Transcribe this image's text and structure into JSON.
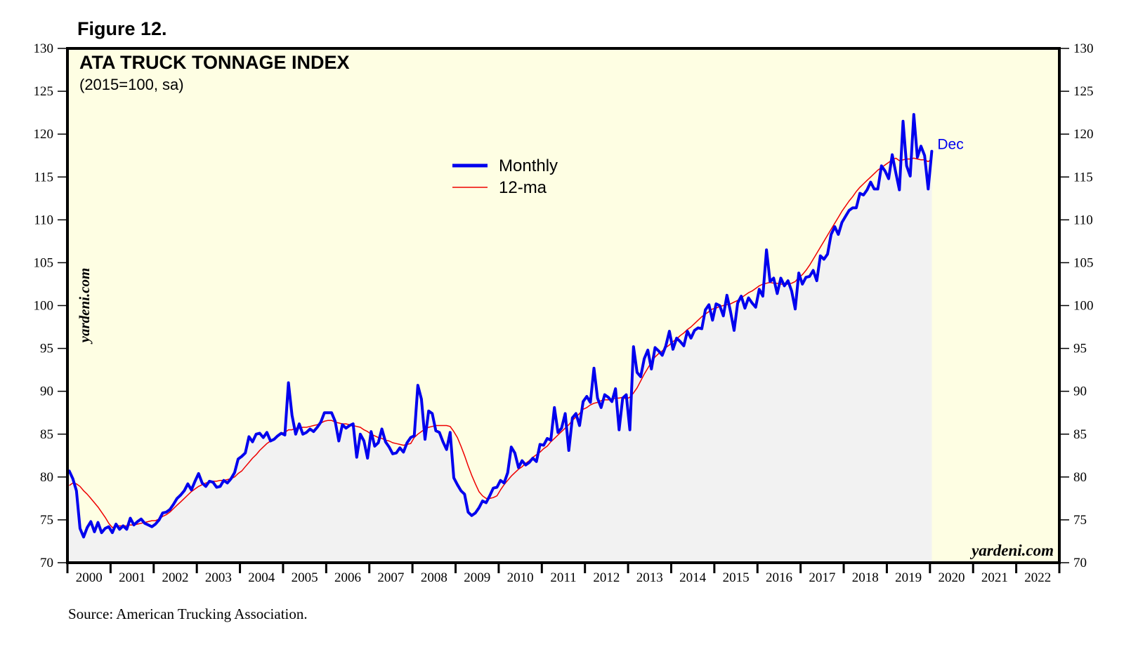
{
  "figure_label": "Figure 12.",
  "source": "Source: American Trucking Association.",
  "watermark": "yardeni.com",
  "chart_data": {
    "type": "line",
    "title": "ATA TRUCK TONNAGE INDEX",
    "subtitle": "(2015=100, sa)",
    "ylim": [
      70,
      130
    ],
    "yticks": [
      70,
      75,
      80,
      85,
      90,
      95,
      100,
      105,
      110,
      115,
      120,
      125,
      130
    ],
    "xlim": [
      2000,
      2023
    ],
    "xtick_labels": [
      "2000",
      "2001",
      "2002",
      "2003",
      "2004",
      "2005",
      "2006",
      "2007",
      "2008",
      "2009",
      "2010",
      "2011",
      "2012",
      "2013",
      "2014",
      "2015",
      "2016",
      "2017",
      "2018",
      "2019",
      "2020",
      "2021",
      "2022"
    ],
    "legend_position": "top-center",
    "end_annotation": "Dec",
    "colors": {
      "plot_background": "#fefee3",
      "area_fill": "#f2f2f2",
      "monthly": "#0000ee",
      "ma": "#ee0000"
    },
    "series": [
      {
        "name": "Monthly",
        "start": "2000-01",
        "frequency": "monthly",
        "values": [
          80.7,
          79.8,
          78.4,
          74.0,
          73.0,
          74.1,
          74.8,
          73.6,
          74.7,
          73.5,
          74.0,
          74.2,
          73.5,
          74.5,
          73.9,
          74.3,
          73.9,
          75.2,
          74.4,
          74.8,
          75.1,
          74.6,
          74.4,
          74.2,
          74.5,
          75.0,
          75.8,
          75.9,
          76.2,
          76.8,
          77.5,
          77.9,
          78.4,
          79.2,
          78.5,
          79.5,
          80.4,
          79.3,
          78.9,
          79.5,
          79.4,
          78.8,
          78.9,
          79.6,
          79.3,
          79.8,
          80.5,
          82.1,
          82.4,
          82.8,
          84.7,
          84.1,
          85.0,
          85.1,
          84.6,
          85.2,
          84.2,
          84.4,
          84.8,
          85.1,
          84.9,
          91.0,
          87.2,
          85.0,
          86.2,
          85.0,
          85.2,
          85.6,
          85.3,
          85.8,
          86.4,
          87.5,
          87.5,
          87.5,
          86.5,
          84.2,
          86.1,
          85.7,
          86.0,
          86.2,
          82.3,
          85.0,
          84.2,
          82.2,
          85.3,
          83.6,
          84.0,
          85.6,
          84.1,
          83.5,
          82.7,
          82.8,
          83.4,
          82.9,
          84.0,
          84.6,
          84.8,
          90.7,
          89.1,
          84.4,
          87.7,
          87.4,
          85.4,
          85.2,
          84.1,
          83.2,
          85.2,
          79.9,
          79.1,
          78.4,
          78.0,
          75.9,
          75.5,
          75.8,
          76.4,
          77.2,
          77.0,
          77.8,
          78.7,
          78.8,
          79.6,
          79.3,
          80.5,
          83.5,
          82.8,
          81.1,
          81.9,
          81.4,
          81.7,
          82.2,
          81.8,
          83.8,
          83.7,
          84.5,
          84.3,
          88.1,
          85.2,
          85.7,
          87.4,
          83.1,
          86.9,
          87.4,
          86.0,
          88.8,
          89.4,
          88.7,
          92.7,
          89.2,
          88.1,
          89.6,
          89.3,
          88.8,
          90.3,
          85.5,
          89.2,
          89.6,
          85.5,
          95.2,
          92.2,
          91.7,
          93.8,
          94.8,
          92.6,
          95.1,
          94.7,
          94.2,
          95.3,
          97.0,
          94.9,
          96.2,
          95.8,
          95.3,
          97.0,
          96.2,
          97.1,
          97.4,
          97.3,
          99.5,
          100.1,
          98.3,
          100.2,
          100.0,
          98.8,
          101.2,
          99.3,
          97.1,
          100.3,
          101.1,
          99.7,
          100.9,
          100.3,
          99.8,
          101.9,
          101.1,
          106.5,
          102.8,
          103.2,
          101.4,
          103.2,
          102.3,
          102.9,
          101.7,
          99.6,
          103.8,
          102.5,
          103.3,
          103.4,
          104.1,
          102.9,
          105.8,
          105.4,
          106.0,
          108.3,
          109.2,
          108.3,
          109.7,
          110.4,
          111.1,
          111.4,
          111.4,
          113.1,
          112.9,
          113.5,
          114.4,
          113.6,
          113.6,
          116.3,
          115.7,
          114.8,
          117.6,
          115.5,
          113.5,
          121.5,
          116.3,
          115.1,
          122.3,
          117.3,
          118.6,
          117.5,
          113.6,
          118.0
        ]
      },
      {
        "name": "12-ma",
        "start": "2000-01",
        "frequency": "monthly",
        "values": [
          79.0,
          79.3,
          79.2,
          78.9,
          78.4,
          78.0,
          77.5,
          77.0,
          76.5,
          75.9,
          75.3,
          74.6,
          74.1,
          74.3,
          74.3,
          74.3,
          74.3,
          74.4,
          74.4,
          74.5,
          74.6,
          74.7,
          74.8,
          74.9,
          74.9,
          75.1,
          75.4,
          75.6,
          75.9,
          76.3,
          76.7,
          77.1,
          77.5,
          77.9,
          78.3,
          78.6,
          78.9,
          79.1,
          79.3,
          79.4,
          79.5,
          79.5,
          79.6,
          79.6,
          79.7,
          79.8,
          80.0,
          80.4,
          80.7,
          81.2,
          81.7,
          82.2,
          82.6,
          83.1,
          83.5,
          83.9,
          84.2,
          84.5,
          84.8,
          85.1,
          85.2,
          85.5,
          85.5,
          85.7,
          85.7,
          85.8,
          85.8,
          85.9,
          86.0,
          86.1,
          86.3,
          86.5,
          86.6,
          86.6,
          86.4,
          86.3,
          86.2,
          86.2,
          86.1,
          86.0,
          85.9,
          85.8,
          85.5,
          85.3,
          85.0,
          84.8,
          84.6,
          84.5,
          84.3,
          84.2,
          84.0,
          83.9,
          83.8,
          83.7,
          83.8,
          83.9,
          84.6,
          85.0,
          85.3,
          85.6,
          85.8,
          85.9,
          86.0,
          86.0,
          86.0,
          86.0,
          85.9,
          85.3,
          84.6,
          83.6,
          82.5,
          81.3,
          80.2,
          79.2,
          78.3,
          77.8,
          77.5,
          77.5,
          77.6,
          77.8,
          78.5,
          79.1,
          79.6,
          80.1,
          80.5,
          80.9,
          81.2,
          81.6,
          81.9,
          82.3,
          82.6,
          82.9,
          83.3,
          83.6,
          84.1,
          84.5,
          84.9,
          85.3,
          85.7,
          86.1,
          86.6,
          87.0,
          87.4,
          87.9,
          88.1,
          88.4,
          88.6,
          88.7,
          88.9,
          89.0,
          89.0,
          89.1,
          89.2,
          89.2,
          89.3,
          89.1,
          89.3,
          89.8,
          90.4,
          91.2,
          92.0,
          92.7,
          93.4,
          94.0,
          94.4,
          94.7,
          95.1,
          95.4,
          95.8,
          96.1,
          96.5,
          96.8,
          97.2,
          97.5,
          97.9,
          98.3,
          98.7,
          99.0,
          99.3,
          99.6,
          99.7,
          99.9,
          100.0,
          100.1,
          100.2,
          100.4,
          100.6,
          100.9,
          101.2,
          101.5,
          101.7,
          102.0,
          102.3,
          102.5,
          102.6,
          102.7,
          102.6,
          102.6,
          102.5,
          102.5,
          102.5,
          102.6,
          102.8,
          103.3,
          103.6,
          104.1,
          104.7,
          105.4,
          106.1,
          106.8,
          107.5,
          108.2,
          108.9,
          109.6,
          110.3,
          111.0,
          111.6,
          112.2,
          112.7,
          113.3,
          113.8,
          114.2,
          114.6,
          115.0,
          115.4,
          115.8,
          116.1,
          116.4,
          116.7,
          117.0,
          117.2,
          116.9,
          117.0,
          117.1,
          117.1,
          117.2,
          117.1,
          117.0,
          117.0,
          116.8,
          117.1
        ]
      }
    ]
  }
}
